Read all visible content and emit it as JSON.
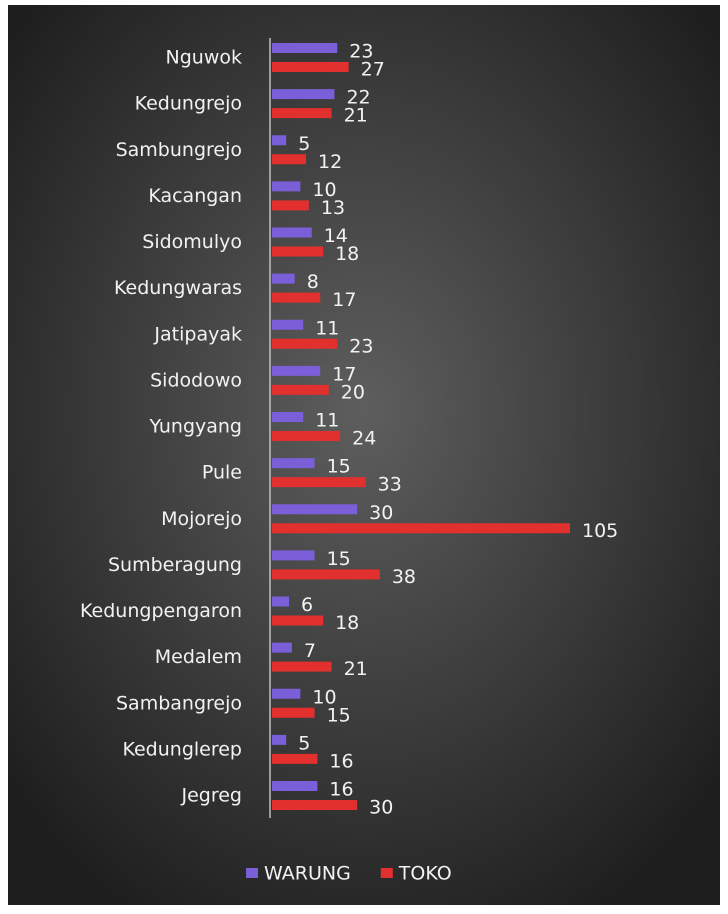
{
  "chart_data": {
    "type": "bar",
    "orientation": "horizontal",
    "categories": [
      "Nguwok",
      "Kedungrejo",
      "Sambungrejo",
      "Kacangan",
      "Sidomulyo",
      "Kedungwaras",
      "Jatipayak",
      "Sidodowo",
      "Yungyang",
      "Pule",
      "Mojorejo",
      "Sumberagung",
      "Kedungpengaron",
      "Medalem",
      "Sambangrejo",
      "Kedunglerep",
      "Jegreg"
    ],
    "series": [
      {
        "name": "WARUNG",
        "color": "#7a5fd8",
        "values": [
          23,
          22,
          5,
          10,
          14,
          8,
          11,
          17,
          11,
          15,
          30,
          15,
          6,
          7,
          10,
          5,
          16
        ]
      },
      {
        "name": "TOKO",
        "color": "#e2302e",
        "values": [
          27,
          21,
          12,
          13,
          18,
          17,
          23,
          20,
          24,
          33,
          105,
          38,
          18,
          21,
          15,
          16,
          30
        ]
      }
    ],
    "legend": "bottom"
  }
}
